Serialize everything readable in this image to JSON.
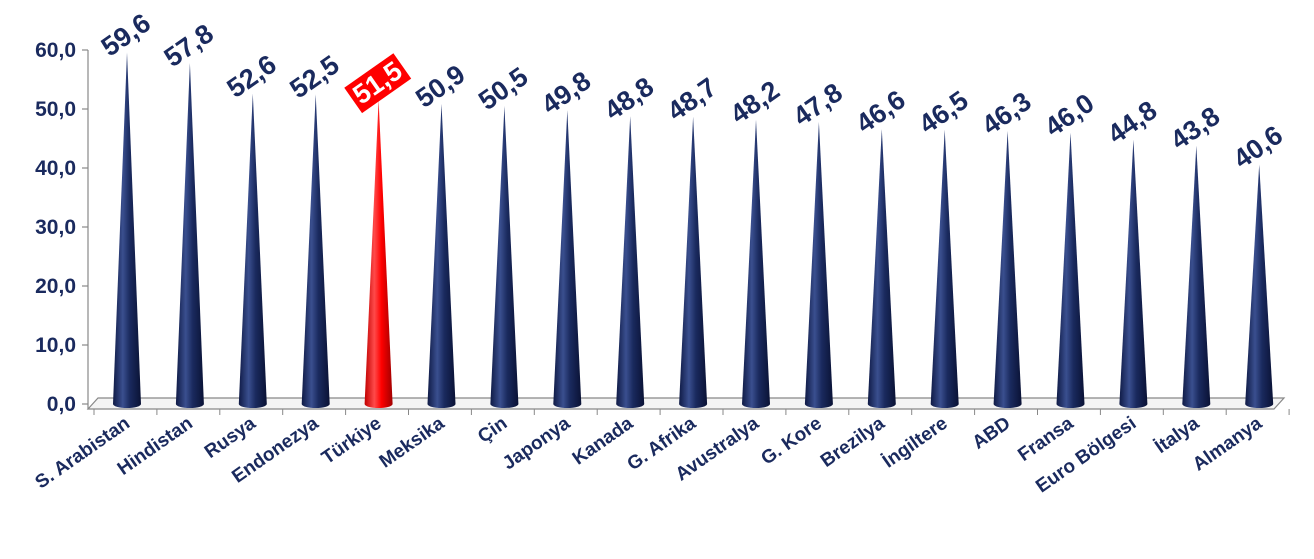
{
  "chart_data": {
    "type": "bar",
    "bar_shape": "cone",
    "categories": [
      "S. Arabistan",
      "Hindistan",
      "Rusya",
      "Endonezya",
      "Türkiye",
      "Meksika",
      "Çin",
      "Japonya",
      "Kanada",
      "G. Afrika",
      "Avustralya",
      "G. Kore",
      "Brezilya",
      "İngiltere",
      "ABD",
      "Fransa",
      "Euro Bölgesi",
      "İtalya",
      "Almanya"
    ],
    "values": [
      59.6,
      57.8,
      52.6,
      52.5,
      51.5,
      50.9,
      50.5,
      49.8,
      48.8,
      48.7,
      48.2,
      47.8,
      46.6,
      46.5,
      46.3,
      46.0,
      44.8,
      43.8,
      40.6
    ],
    "value_labels": [
      "59,6",
      "57,8",
      "52,6",
      "52,5",
      "51,5",
      "50,9",
      "50,5",
      "49,8",
      "48,8",
      "48,7",
      "48,2",
      "47,8",
      "46,6",
      "46,5",
      "46,3",
      "46,0",
      "44,8",
      "43,8",
      "40,6"
    ],
    "yticks": [
      "0,0",
      "10,0",
      "20,0",
      "30,0",
      "40,0",
      "50,0",
      "60,0"
    ],
    "ylim": [
      0,
      60
    ],
    "highlight_index": 4,
    "grid": false,
    "legend": "none",
    "colors": {
      "bar": "#1a2a5e",
      "highlight": "#ff0000",
      "text": "#1a2a5e",
      "highlight_label_bg": "#ff0000",
      "axis": "#888888"
    }
  }
}
